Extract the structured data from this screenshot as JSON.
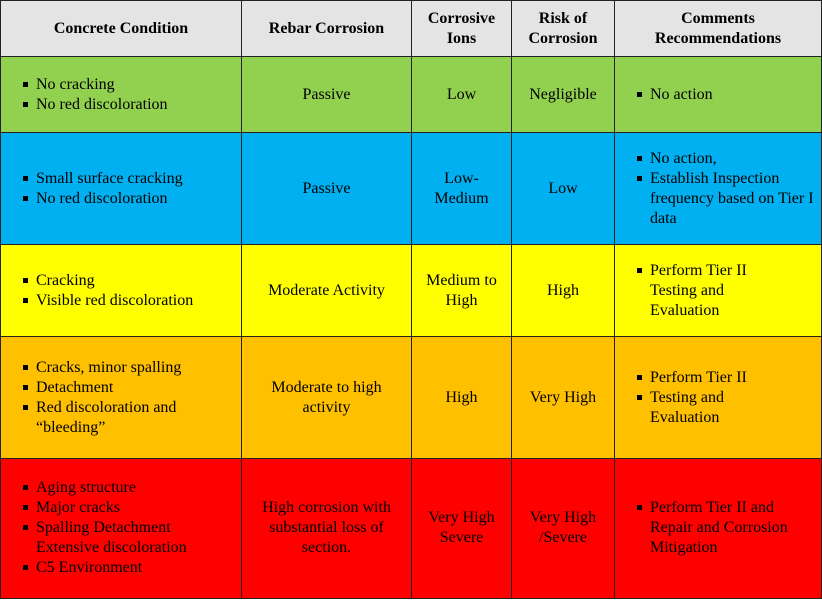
{
  "table": {
    "headers": {
      "condition": "Concrete Condition",
      "rebar": "Rebar Corrosion",
      "ions": "Corrosive Ions",
      "risk": "Risk of Corrosion",
      "comments": "Comments Recommendations"
    },
    "rows": [
      {
        "color": "#92d050",
        "condition": [
          "No cracking",
          "No red discoloration"
        ],
        "rebar": "Passive",
        "ions": "Low",
        "risk": "Negligible",
        "comments": [
          "No action"
        ]
      },
      {
        "color": "#00b0f0",
        "condition": [
          "Small surface cracking",
          "No red discoloration"
        ],
        "rebar": "Passive",
        "ions": "Low-Medium",
        "risk": "Low",
        "comments": [
          "No action,",
          "Establish Inspection frequency based on Tier I data"
        ]
      },
      {
        "color": "#ffff00",
        "condition": [
          "Cracking",
          "Visible red discoloration"
        ],
        "rebar": "Moderate Activity",
        "ions": "Medium to High",
        "risk": "High",
        "comments": [
          "Perform Tier II Testing and Evaluation"
        ]
      },
      {
        "color": "#ffc000",
        "condition": [
          "Cracks, minor spalling",
          "Detachment",
          "Red discoloration and “bleeding”"
        ],
        "rebar": "Moderate to high activity",
        "ions": "High",
        "risk": "Very High",
        "comments": [
          "Perform Tier II",
          "Testing and Evaluation"
        ]
      },
      {
        "color": "#ff0000",
        "condition": [
          "Aging structure",
          "Major cracks",
          "Spalling Detachment",
          "Extensive discoloration",
          "C5 Environment"
        ],
        "rebar": "High corrosion with substantial loss of section.",
        "ions": "Very High Severe",
        "risk": "Very High /Severe",
        "comments": [
          "Perform Tier II and Repair and Corrosion Mitigation"
        ]
      }
    ]
  }
}
